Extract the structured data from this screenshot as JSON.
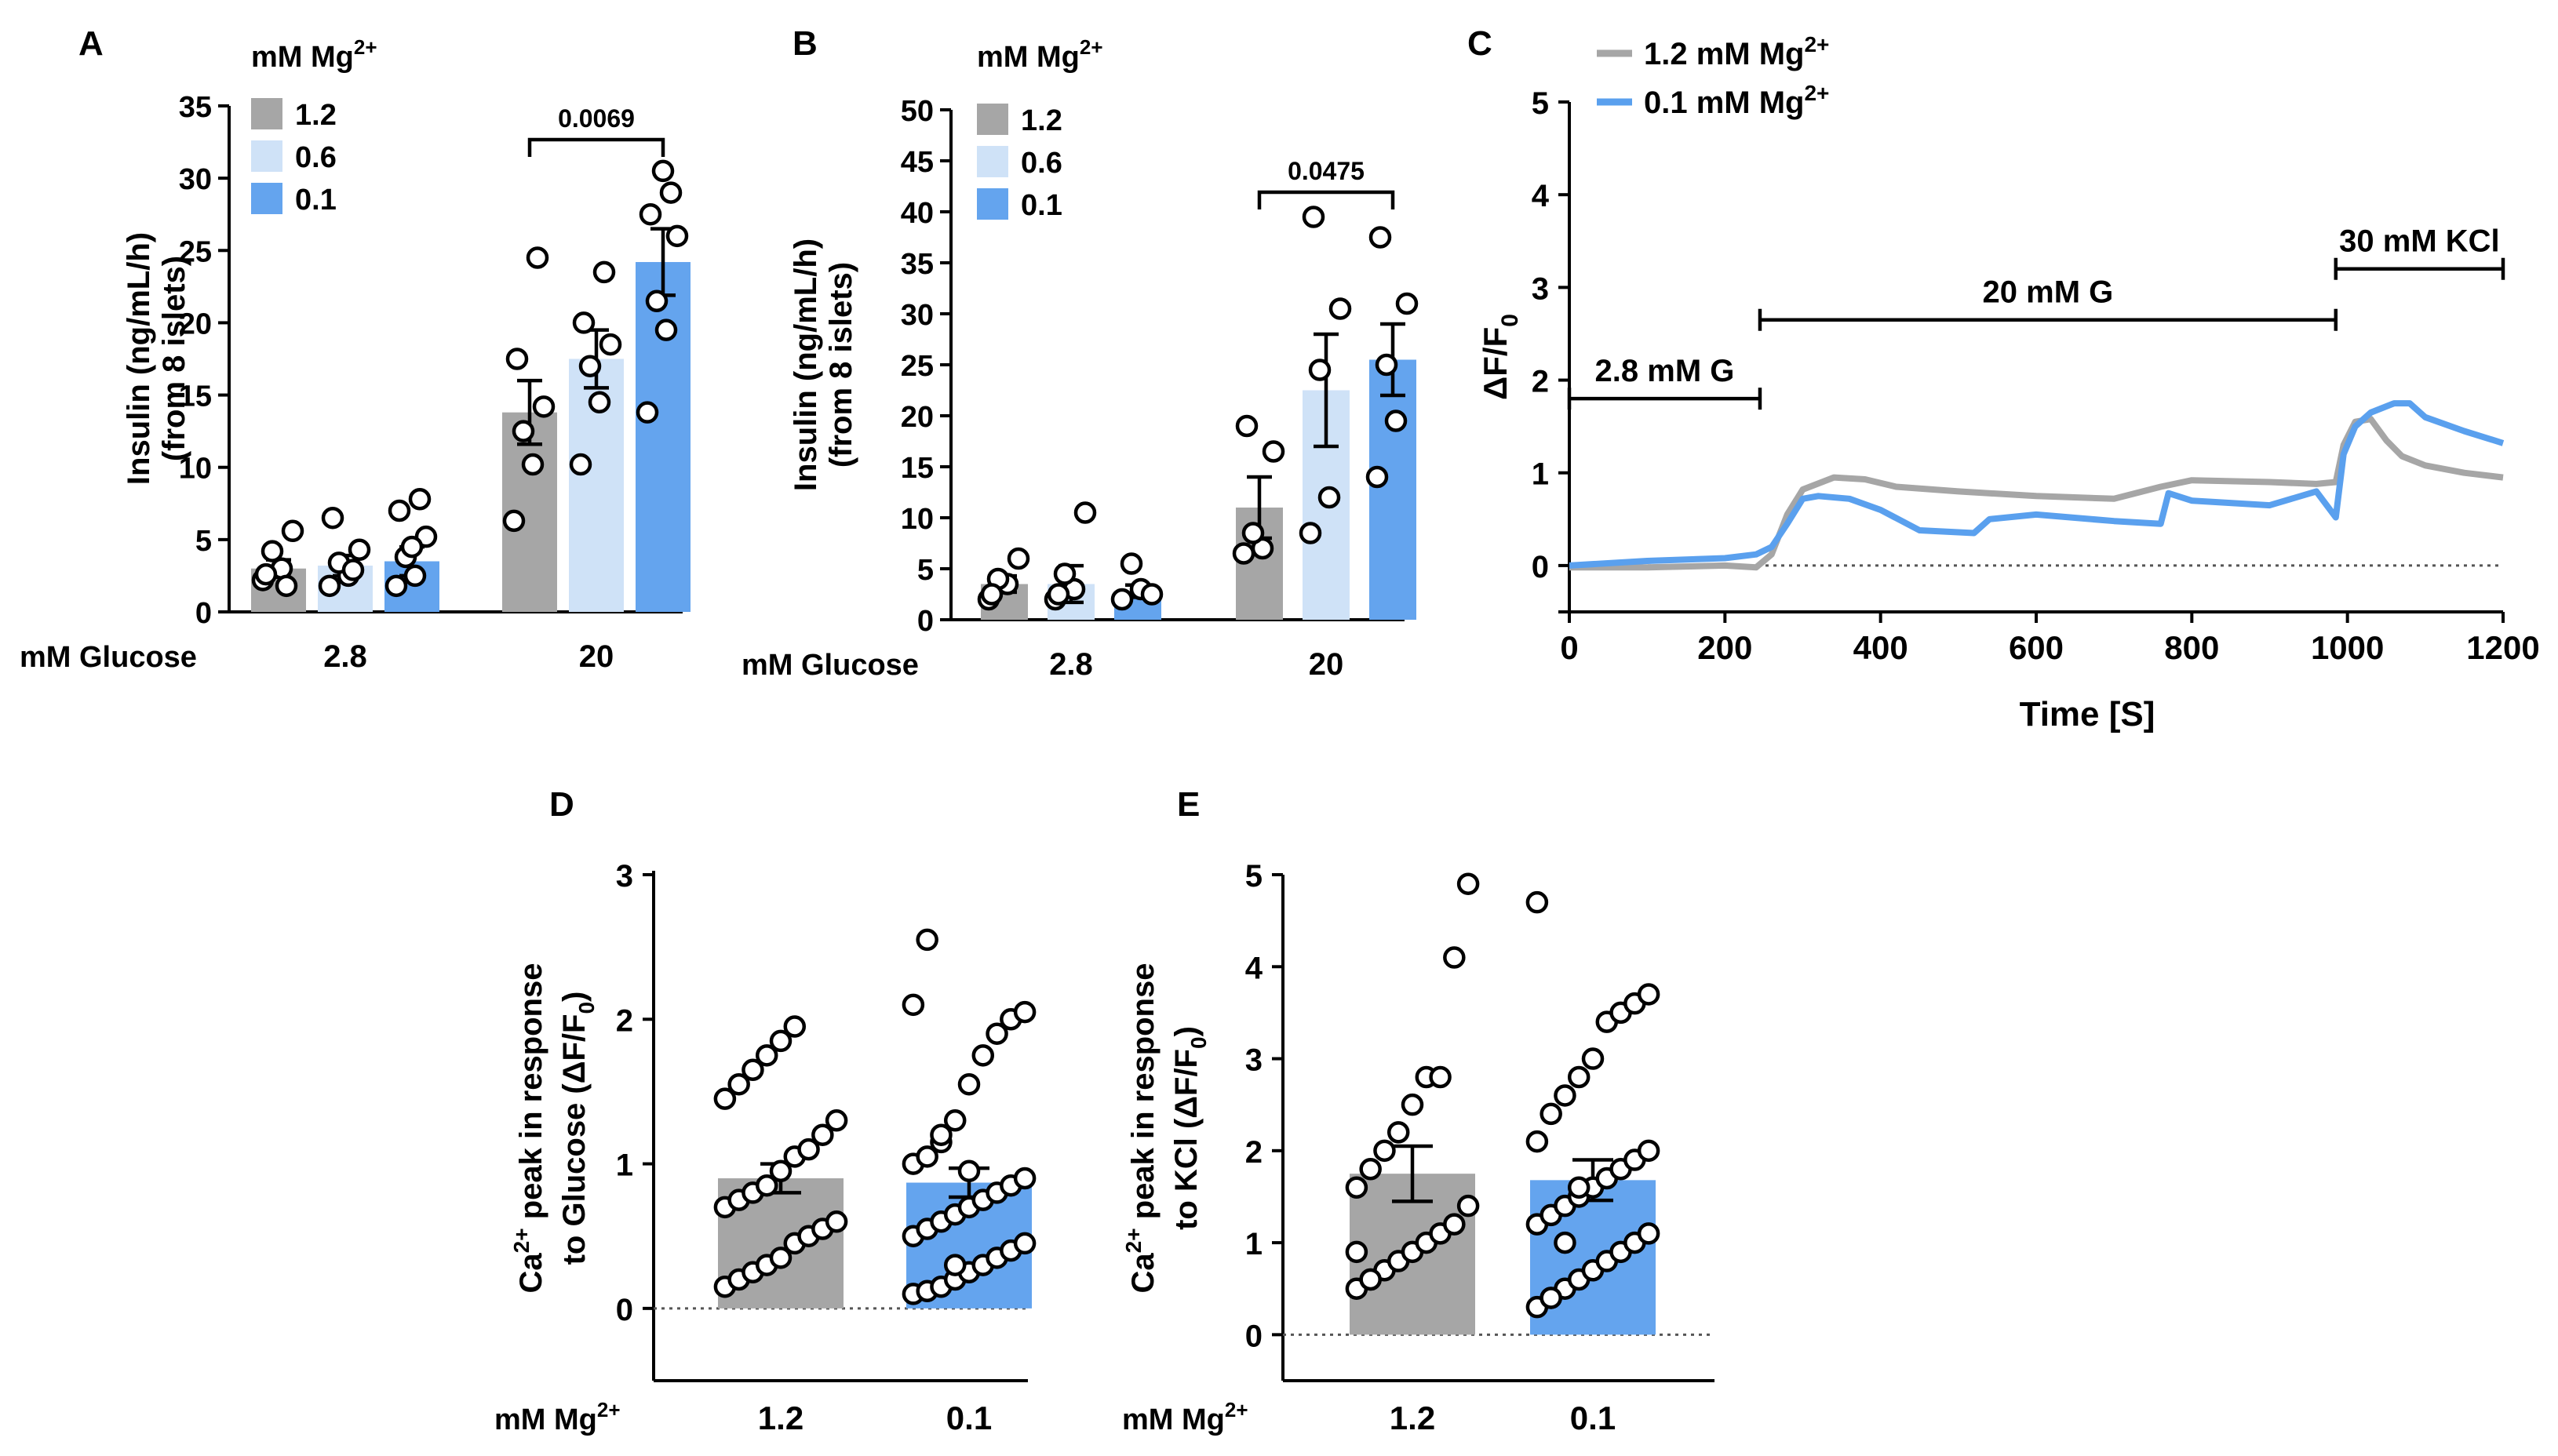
{
  "colors": {
    "mg_1_2": "#a6a6a6",
    "mg_0_6": "#cfe2f7",
    "mg_0_1": "#64a4ee",
    "trace_1_2": "#a6a6a6",
    "trace_0_1": "#5aa0ee"
  },
  "chart_data": [
    {
      "panel": "A",
      "type": "bar",
      "ylabel_line1": "Insulin (ng/mL/h)",
      "ylabel_line2": "(from 8 islets)",
      "ylim": [
        0,
        35
      ],
      "yticks": [
        "0",
        "5",
        "10",
        "15",
        "20",
        "25",
        "30",
        "35"
      ],
      "legend_title": "mM Mg2+",
      "legend_title_base": "mM Mg",
      "legend_title_sup": "2+",
      "legend": [
        "1.2",
        "0.6",
        "0.1"
      ],
      "xlabel": "mM Glucose",
      "categories": [
        "2.8",
        "20"
      ],
      "series": [
        {
          "name": "1.2",
          "values": [
            3.0,
            13.8
          ],
          "sem": [
            0.6,
            2.2
          ],
          "points": [
            [
              2.2,
              3.0,
              4.2,
              5.6,
              2.6,
              1.8
            ],
            [
              6.3,
              10.2,
              12.5,
              14.2,
              17.5,
              24.5
            ]
          ]
        },
        {
          "name": "0.6",
          "values": [
            3.2,
            17.5
          ],
          "sem": [
            0.7,
            2.0
          ],
          "points": [
            [
              1.8,
              2.5,
              3.4,
              4.3,
              6.5,
              2.9
            ],
            [
              10.2,
              14.5,
              17.0,
              18.5,
              20.0,
              23.5
            ]
          ]
        },
        {
          "name": "0.1",
          "values": [
            3.5,
            24.2
          ],
          "sem": [
            1.0,
            2.3
          ],
          "points": [
            [
              1.8,
              2.5,
              3.8,
              5.2,
              7.0,
              7.8,
              4.5
            ],
            [
              13.8,
              19.5,
              21.5,
              26.0,
              27.5,
              29.0,
              30.5
            ]
          ]
        }
      ],
      "significance": {
        "label": "0.0069",
        "between": [
          "1.2",
          "0.1"
        ],
        "category": "20"
      }
    },
    {
      "panel": "B",
      "type": "bar",
      "ylabel_line1": "Insulin (ng/mL/h)",
      "ylabel_line2": "(from 8 islets)",
      "ylim": [
        0,
        50
      ],
      "yticks": [
        "0",
        "5",
        "10",
        "15",
        "20",
        "25",
        "30",
        "35",
        "40",
        "45",
        "50"
      ],
      "legend_title": "mM Mg2+",
      "legend_title_base": "mM Mg",
      "legend_title_sup": "2+",
      "legend": [
        "1.2",
        "0.6",
        "0.1"
      ],
      "xlabel": "mM Glucose",
      "categories": [
        "2.8",
        "20"
      ],
      "series": [
        {
          "name": "1.2",
          "values": [
            3.5,
            11.0
          ],
          "sem": [
            0.8,
            3.0
          ],
          "points": [
            [
              2.0,
              3.5,
              4.0,
              6.0,
              2.5
            ],
            [
              6.5,
              7.0,
              8.5,
              16.5,
              19.0
            ]
          ]
        },
        {
          "name": "0.6",
          "values": [
            3.5,
            22.5
          ],
          "sem": [
            1.8,
            5.5
          ],
          "points": [
            [
              2.0,
              3.0,
              4.5,
              10.5,
              2.5
            ],
            [
              8.5,
              12.0,
              24.5,
              30.5,
              39.5
            ]
          ]
        },
        {
          "name": "0.1",
          "values": [
            2.8,
            25.5
          ],
          "sem": [
            0.6,
            3.5
          ],
          "points": [
            [
              2.0,
              3.0,
              5.5,
              2.5
            ],
            [
              14.0,
              19.5,
              25.0,
              31.0,
              37.5
            ]
          ]
        }
      ],
      "significance": {
        "label": "0.0475",
        "between": [
          "1.2",
          "0.1"
        ],
        "category": "20"
      }
    },
    {
      "panel": "C",
      "type": "line",
      "ylabel": "ΔF/F0",
      "ylabel_base": "ΔF/F",
      "ylabel_sub": "0",
      "xlabel": "Time [S]",
      "xlim": [
        0,
        1200
      ],
      "ylim": [
        -0.5,
        5
      ],
      "xticks": [
        "0",
        "200",
        "400",
        "600",
        "800",
        "1000",
        "1200"
      ],
      "yticks": [
        "0",
        "1",
        "2",
        "3",
        "4",
        "5"
      ],
      "legend": [
        {
          "label": "1.2 mM Mg2+",
          "base": "1.2 mM Mg",
          "sup": "2+"
        },
        {
          "label": "0.1 mM Mg2+",
          "base": "0.1 mM Mg",
          "sup": "2+"
        }
      ],
      "stimuli": [
        {
          "label": "2.8 mM G",
          "start": 0,
          "end": 245
        },
        {
          "label": "20 mM G",
          "start": 245,
          "end": 985
        },
        {
          "label": "30 mM KCl",
          "start": 985,
          "end": 1200
        }
      ],
      "series": [
        {
          "name": "1.2 mM Mg2+",
          "x": [
            0,
            100,
            200,
            240,
            260,
            280,
            300,
            340,
            380,
            420,
            500,
            600,
            700,
            760,
            800,
            900,
            960,
            985,
            995,
            1010,
            1030,
            1050,
            1070,
            1100,
            1150,
            1200
          ],
          "y": [
            -0.02,
            -0.02,
            0.0,
            -0.02,
            0.12,
            0.55,
            0.82,
            0.95,
            0.93,
            0.85,
            0.8,
            0.75,
            0.72,
            0.85,
            0.92,
            0.9,
            0.88,
            0.9,
            1.3,
            1.55,
            1.58,
            1.35,
            1.18,
            1.08,
            1.0,
            0.95
          ]
        },
        {
          "name": "0.1 mM Mg2+",
          "x": [
            0,
            100,
            200,
            240,
            260,
            280,
            300,
            320,
            360,
            400,
            450,
            520,
            540,
            600,
            700,
            760,
            770,
            800,
            900,
            960,
            985,
            995,
            1010,
            1030,
            1060,
            1080,
            1100,
            1150,
            1200
          ],
          "y": [
            0.0,
            0.05,
            0.08,
            0.12,
            0.2,
            0.45,
            0.72,
            0.75,
            0.72,
            0.6,
            0.38,
            0.35,
            0.5,
            0.55,
            0.48,
            0.45,
            0.78,
            0.7,
            0.65,
            0.8,
            0.52,
            1.2,
            1.5,
            1.65,
            1.75,
            1.75,
            1.6,
            1.45,
            1.32
          ]
        }
      ]
    },
    {
      "panel": "D",
      "type": "bar",
      "ylabel_line1": "Ca2+ peak in response",
      "ylabel_line1_parts": [
        "Ca",
        "2+",
        " peak in response"
      ],
      "ylabel_line2": "to Glucose (ΔF/F0)",
      "ylabel_line2_parts": [
        "to Glucose (ΔF/F",
        "0",
        ")"
      ],
      "ylim": [
        -0.5,
        3
      ],
      "yticks": [
        "0",
        "1",
        "2",
        "3"
      ],
      "xlabel": "mM Mg2+",
      "xlabel_base": "mM Mg",
      "xlabel_sup": "2+",
      "categories": [
        "1.2",
        "0.1"
      ],
      "values": [
        0.9,
        0.87
      ],
      "sem": [
        0.1,
        0.1
      ],
      "points": [
        [
          0.15,
          0.2,
          0.25,
          0.3,
          0.35,
          0.45,
          0.5,
          0.55,
          0.6,
          0.7,
          0.75,
          0.8,
          0.85,
          0.95,
          1.05,
          1.1,
          1.2,
          1.3,
          1.45,
          1.55,
          1.65,
          1.75,
          1.85,
          1.95
        ],
        [
          0.1,
          0.12,
          0.15,
          0.2,
          0.25,
          0.3,
          0.35,
          0.4,
          0.45,
          0.5,
          0.55,
          0.6,
          0.65,
          0.7,
          0.75,
          0.8,
          0.85,
          0.9,
          1.0,
          1.05,
          1.15,
          1.3,
          1.55,
          1.75,
          1.9,
          2.0,
          2.05,
          2.1,
          2.55,
          1.2,
          0.3,
          0.95
        ]
      ]
    },
    {
      "panel": "E",
      "type": "bar",
      "ylabel_line1": "Ca2+ peak in response",
      "ylabel_line1_parts": [
        "Ca",
        "2+",
        " peak in response"
      ],
      "ylabel_line2": "to KCl (ΔF/F0)",
      "ylabel_line2_parts": [
        "to KCl (ΔF/F",
        "0",
        ")"
      ],
      "ylim": [
        -0.5,
        5
      ],
      "yticks": [
        "0",
        "1",
        "2",
        "3",
        "4",
        "5"
      ],
      "xlabel": "mM Mg2+",
      "xlabel_base": "mM Mg",
      "xlabel_sup": "2+",
      "categories": [
        "1.2",
        "0.1"
      ],
      "values": [
        1.75,
        1.68
      ],
      "sem": [
        0.3,
        0.22
      ],
      "points": [
        [
          0.5,
          0.6,
          0.7,
          0.8,
          0.9,
          1.0,
          1.1,
          1.2,
          1.4,
          1.6,
          1.8,
          2.0,
          2.2,
          2.5,
          2.8,
          2.8,
          4.1,
          4.9,
          0.9,
          0.6
        ],
        [
          0.3,
          0.4,
          0.5,
          0.6,
          0.7,
          0.8,
          0.9,
          1.0,
          1.1,
          1.2,
          1.3,
          1.4,
          1.5,
          1.6,
          1.7,
          1.8,
          1.9,
          2.0,
          2.1,
          2.4,
          2.6,
          2.8,
          3.0,
          3.4,
          3.5,
          3.6,
          3.7,
          4.7,
          0.4,
          1.0,
          1.6
        ]
      ]
    }
  ]
}
